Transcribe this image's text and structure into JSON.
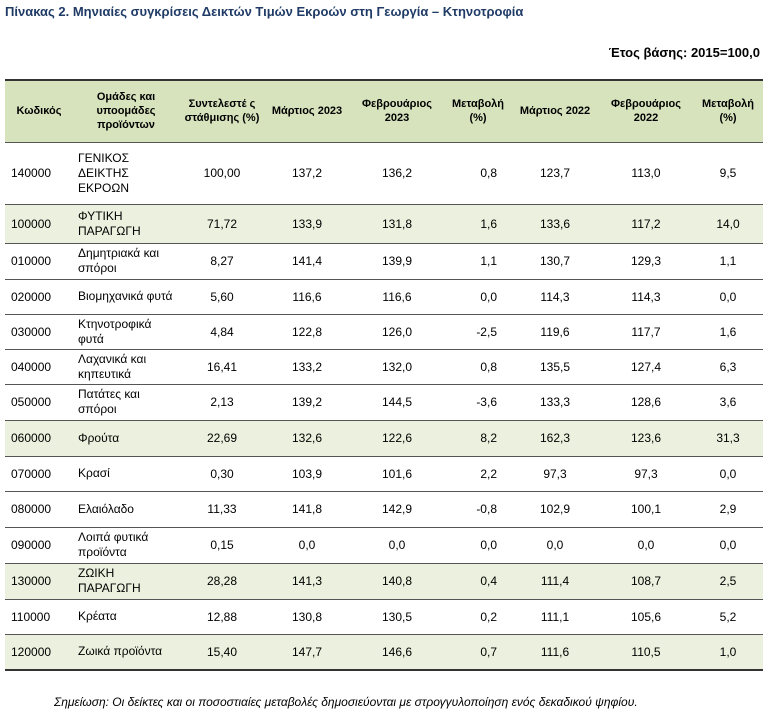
{
  "title": "Πίνακας 2. Μηνιαίες συγκρίσεις Δεικτών Τιμών Εκροών στη Γεωργία – Κτηνοτροφία",
  "base_year": "Έτος βάσης: 2015=100,0",
  "headers": [
    "Κωδικός",
    "Ομάδες και υποομάδες προϊόντων",
    "Συντελεστέ ς στάθμισης (%)",
    "Μάρτιος 2023",
    "Φεβρουάριος 2023",
    "Μεταβολή (%)",
    "Μάρτιος 2022",
    "Φεβρουάριος 2022",
    "Μεταβολή (%)"
  ],
  "rows": [
    {
      "code": "140000",
      "name": "ΓΕΝΙΚΟΣ ΔΕΙΚΤΗΣ ΕΚΡΟΩΝ",
      "weight": "100,00",
      "mar23": "137,2",
      "feb23": "136,2",
      "chg23": "0,8",
      "mar22": "123,7",
      "feb22": "113,0",
      "chg22": "9,5",
      "group": false
    },
    {
      "code": "100000",
      "name": "ΦΥΤΙΚΗ ΠΑΡΑΓΩΓΗ",
      "weight": "71,72",
      "mar23": "133,9",
      "feb23": "131,8",
      "chg23": "1,6",
      "mar22": "133,6",
      "feb22": "117,2",
      "chg22": "14,0",
      "group": true
    },
    {
      "code": "010000",
      "name": "Δημητριακά και σπόροι",
      "weight": "8,27",
      "mar23": "141,4",
      "feb23": "139,9",
      "chg23": "1,1",
      "mar22": "130,7",
      "feb22": "129,3",
      "chg22": "1,1",
      "group": false
    },
    {
      "code": "020000",
      "name": "Βιομηχανικά φυτά",
      "weight": "5,60",
      "mar23": "116,6",
      "feb23": "116,6",
      "chg23": "0,0",
      "mar22": "114,3",
      "feb22": "114,3",
      "chg22": "0,0",
      "group": false
    },
    {
      "code": "030000",
      "name": "Κτηνοτροφικά φυτά",
      "weight": "4,84",
      "mar23": "122,8",
      "feb23": "126,0",
      "chg23": "-2,5",
      "mar22": "119,6",
      "feb22": "117,7",
      "chg22": "1,6",
      "group": false
    },
    {
      "code": "040000",
      "name": "Λαχανικά και κηπευτικά",
      "weight": "16,41",
      "mar23": "133,2",
      "feb23": "132,0",
      "chg23": "0,8",
      "mar22": "135,5",
      "feb22": "127,4",
      "chg22": "6,3",
      "group": false
    },
    {
      "code": "050000",
      "name": "Πατάτες και σπόροι",
      "weight": "2,13",
      "mar23": "139,2",
      "feb23": "144,5",
      "chg23": "-3,6",
      "mar22": "133,3",
      "feb22": "128,6",
      "chg22": "3,6",
      "group": false
    },
    {
      "code": "060000",
      "name": "Φρούτα",
      "weight": "22,69",
      "mar23": "132,6",
      "feb23": "122,6",
      "chg23": "8,2",
      "mar22": "162,3",
      "feb22": "123,6",
      "chg22": "31,3",
      "group": true
    },
    {
      "code": "070000",
      "name": "Κρασί",
      "weight": "0,30",
      "mar23": "103,9",
      "feb23": "101,6",
      "chg23": "2,2",
      "mar22": "97,3",
      "feb22": "97,3",
      "chg22": "0,0",
      "group": false
    },
    {
      "code": "080000",
      "name": "Ελαιόλαδο",
      "weight": "11,33",
      "mar23": "141,8",
      "feb23": "142,9",
      "chg23": "-0,8",
      "mar22": "102,9",
      "feb22": "100,1",
      "chg22": "2,9",
      "group": false
    },
    {
      "code": "090000",
      "name": "Λοιπά φυτικά προϊόντα",
      "weight": "0,15",
      "mar23": "0,0",
      "feb23": "0,0",
      "chg23": "0,0",
      "mar22": "0,0",
      "feb22": "0,0",
      "chg22": "0,0",
      "group": false
    },
    {
      "code": "130000",
      "name": "ΖΩΙΚΗ ΠΑΡΑΓΩΓΗ",
      "weight": "28,28",
      "mar23": "141,3",
      "feb23": "140,8",
      "chg23": "0,4",
      "mar22": "111,4",
      "feb22": "108,7",
      "chg22": "2,5",
      "group": true
    },
    {
      "code": "110000",
      "name": "Κρέατα",
      "weight": "12,88",
      "mar23": "130,8",
      "feb23": "130,5",
      "chg23": "0,2",
      "mar22": "111,1",
      "feb22": "105,6",
      "chg22": "5,2",
      "group": false
    },
    {
      "code": "120000",
      "name": "Ζωικά προϊόντα",
      "weight": "15,40",
      "mar23": "147,7",
      "feb23": "146,6",
      "chg23": "0,7",
      "mar22": "111,6",
      "feb22": "110,5",
      "chg22": "1,0",
      "group": true
    }
  ],
  "note": "Σημείωση: Οι δείκτες και οι ποσοστιαίες μεταβολές δημοσιεύονται με στρογγυλοποίηση ενός δεκαδικού ψηφίου."
}
